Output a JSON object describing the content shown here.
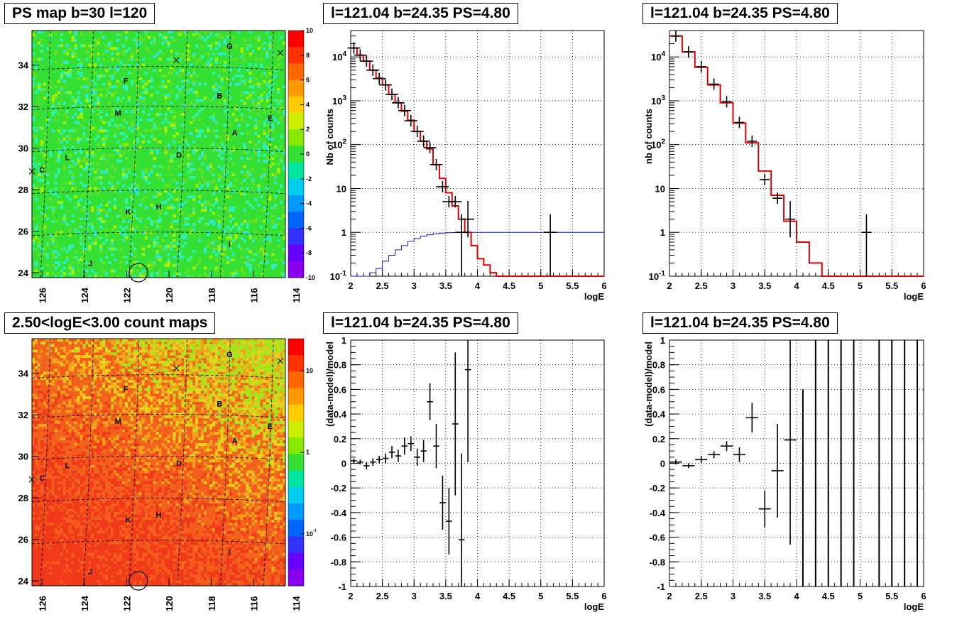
{
  "panels": [
    {
      "title": "PS map b=30 l=120"
    },
    {
      "title": "l=121.04 b=24.35 PS=4.80"
    },
    {
      "title": "l=121.04 b=24.35 PS=4.80"
    },
    {
      "title": "2.50<logE<3.00 count maps"
    },
    {
      "title": "l=121.04 b=24.35 PS=4.80"
    },
    {
      "title": "l=121.04 b=24.35 PS=4.80"
    }
  ],
  "chart_data": [
    {
      "type": "heatmap",
      "title": "PS map b=30 l=120",
      "x_ticks": [
        "126",
        "124",
        "122",
        "120",
        "118",
        "116",
        "114"
      ],
      "y_ticks": [
        "24",
        "26",
        "28",
        "30",
        "32",
        "34"
      ],
      "colorbar_ticks": [
        "10",
        "8",
        "6",
        "4",
        "2",
        "0",
        "-2",
        "-4",
        "-6",
        "-8",
        "-10"
      ],
      "zlim": [
        -10,
        10
      ],
      "base_color": "#33e033",
      "source_labels": [
        "G",
        "F",
        "B",
        "M",
        "E",
        "A",
        "L",
        "D",
        "C",
        "K",
        "H",
        "I",
        "J"
      ],
      "markers": [
        "x",
        "x",
        "x",
        "circle"
      ]
    },
    {
      "type": "line",
      "title": "l=121.04 b=24.35 PS=4.80",
      "xlabel": "logE",
      "ylabel": "Nb of counts",
      "xlim": [
        2,
        6
      ],
      "ylim": [
        0.1,
        40000
      ],
      "yscale": "log",
      "x_ticks": [
        "2",
        "2.5",
        "3",
        "3.5",
        "4",
        "4.5",
        "5",
        "5.5",
        "6"
      ],
      "y_ticks": [
        "10^-1",
        "1",
        "10",
        "10^2",
        "10^3",
        "10^4"
      ],
      "grid": true,
      "data_points": {
        "x": [
          2.05,
          2.15,
          2.25,
          2.35,
          2.45,
          2.55,
          2.65,
          2.75,
          2.85,
          2.95,
          3.05,
          3.15,
          3.25,
          3.35,
          3.45,
          3.55,
          3.65,
          3.75,
          3.85,
          5.15
        ],
        "y": [
          16000,
          11000,
          8000,
          5000,
          3200,
          2300,
          1400,
          900,
          600,
          350,
          200,
          120,
          85,
          35,
          11,
          5,
          5,
          1,
          2,
          1
        ]
      },
      "model_red": {
        "edges": [
          2.0,
          2.1,
          2.2,
          2.3,
          2.4,
          2.5,
          2.6,
          2.7,
          2.8,
          2.9,
          3.0,
          3.1,
          3.2,
          3.3,
          3.4,
          3.5,
          3.6,
          3.7,
          3.8,
          3.9,
          4.0,
          4.1,
          4.2,
          4.3,
          6.0
        ],
        "values": [
          16000,
          11000,
          8000,
          5000,
          3300,
          2300,
          1400,
          900,
          580,
          360,
          200,
          120,
          80,
          35,
          17,
          8,
          4,
          2,
          1,
          0.5,
          0.25,
          0.18,
          0.12,
          0.09
        ]
      },
      "model_blue": {
        "x": [
          2.0,
          2.1,
          2.2,
          2.3,
          2.4,
          2.5,
          2.6,
          2.7,
          2.8,
          2.9,
          3.0,
          3.1,
          3.2,
          3.3,
          3.4,
          3.5,
          3.6,
          3.7,
          3.8,
          4.0,
          6.0
        ],
        "y": [
          0.1,
          0.1,
          0.1,
          0.12,
          0.15,
          0.22,
          0.3,
          0.4,
          0.5,
          0.62,
          0.72,
          0.82,
          0.88,
          0.93,
          0.96,
          0.98,
          0.99,
          1.0,
          1.0,
          1.0,
          1.0
        ]
      }
    },
    {
      "type": "line",
      "title": "l=121.04 b=24.35 PS=4.80",
      "xlabel": "logE",
      "ylabel": "nb of counts",
      "xlim": [
        2,
        6
      ],
      "ylim": [
        0.1,
        40000
      ],
      "yscale": "log",
      "x_ticks": [
        "2",
        "2.5",
        "3",
        "3.5",
        "4",
        "4.5",
        "5",
        "5.5",
        "6"
      ],
      "y_ticks": [
        "10^-1",
        "1",
        "10",
        "10^2",
        "10^3",
        "10^4"
      ],
      "grid": true,
      "data_points": {
        "x": [
          2.1,
          2.3,
          2.5,
          2.7,
          2.9,
          3.1,
          3.3,
          3.5,
          3.7,
          3.9,
          5.1
        ],
        "y": [
          30000,
          13000,
          6000,
          2400,
          950,
          320,
          120,
          16,
          6,
          2,
          1
        ]
      },
      "model_red": {
        "edges": [
          2.0,
          2.2,
          2.4,
          2.6,
          2.8,
          3.0,
          3.2,
          3.4,
          3.6,
          3.8,
          4.0,
          4.2,
          4.4,
          6.0
        ],
        "values": [
          30000,
          13000,
          5800,
          2300,
          900,
          310,
          110,
          25,
          7,
          1.8,
          0.6,
          0.2,
          0.1
        ]
      }
    },
    {
      "type": "heatmap",
      "title": "2.50<logE<3.00 count maps",
      "x_ticks": [
        "126",
        "124",
        "122",
        "120",
        "118",
        "116",
        "114"
      ],
      "y_ticks": [
        "24",
        "26",
        "28",
        "30",
        "32",
        "34"
      ],
      "colorbar_ticks": [
        "10",
        "1",
        "10^-1"
      ],
      "zscale": "log",
      "base_color": "#f06a1e",
      "source_labels": [
        "G",
        "F",
        "B",
        "M",
        "E",
        "A",
        "L",
        "D",
        "C",
        "K",
        "H",
        "I",
        "J"
      ],
      "markers": [
        "x",
        "x",
        "x",
        "circle"
      ]
    },
    {
      "type": "scatter",
      "title": "l=121.04 b=24.35 PS=4.80",
      "xlabel": "logE",
      "ylabel": "(data-model)/model",
      "xlim": [
        2,
        6
      ],
      "ylim": [
        -1,
        1
      ],
      "x_ticks": [
        "2",
        "2.5",
        "3",
        "3.5",
        "4",
        "4.5",
        "5",
        "5.5",
        "6"
      ],
      "y_ticks": [
        "1",
        "0.8",
        "0.6",
        "0.4",
        "0.2",
        "0",
        "-0.2",
        "-0.4",
        "-0.6",
        "-0.8",
        "-1"
      ],
      "grid": true,
      "points": {
        "x": [
          2.05,
          2.15,
          2.25,
          2.35,
          2.45,
          2.55,
          2.65,
          2.75,
          2.85,
          2.95,
          3.05,
          3.15,
          3.25,
          3.35,
          3.45,
          3.55,
          3.65,
          3.75,
          3.85
        ],
        "y": [
          0.02,
          0.01,
          -0.02,
          0.01,
          0.03,
          0.04,
          0.09,
          0.06,
          0.14,
          0.16,
          0.05,
          0.1,
          0.5,
          0.14,
          -0.32,
          -0.47,
          0.32,
          -0.62,
          0.76
        ],
        "err": [
          0.02,
          0.02,
          0.03,
          0.03,
          0.03,
          0.04,
          0.05,
          0.05,
          0.07,
          0.06,
          0.07,
          0.09,
          0.15,
          0.18,
          0.22,
          0.27,
          0.58,
          0.7,
          0.75
        ]
      }
    },
    {
      "type": "scatter",
      "title": "l=121.04 b=24.35 PS=4.80",
      "xlabel": "logE",
      "ylabel": "(data-model)/model",
      "xlim": [
        2,
        6
      ],
      "ylim": [
        -1,
        1
      ],
      "x_ticks": [
        "2",
        "2.5",
        "3",
        "3.5",
        "4",
        "4.5",
        "5",
        "5.5",
        "6"
      ],
      "y_ticks": [
        "1",
        "0.8",
        "0.6",
        "0.4",
        "0.2",
        "0",
        "-0.2",
        "-0.4",
        "-0.6",
        "-0.8",
        "-1"
      ],
      "grid": true,
      "points": {
        "x": [
          2.1,
          2.3,
          2.5,
          2.7,
          2.9,
          3.1,
          3.3,
          3.5,
          3.7,
          3.9
        ],
        "y": [
          0.01,
          -0.02,
          0.03,
          0.07,
          0.14,
          0.07,
          0.37,
          -0.37,
          -0.06,
          0.19
        ],
        "err": [
          0.02,
          0.02,
          0.03,
          0.03,
          0.04,
          0.06,
          0.12,
          0.15,
          0.38,
          0.85
        ]
      },
      "full_error_x": [
        4.1,
        4.3,
        4.5,
        4.7,
        4.9,
        5.3,
        5.5,
        5.7,
        5.9
      ]
    }
  ]
}
